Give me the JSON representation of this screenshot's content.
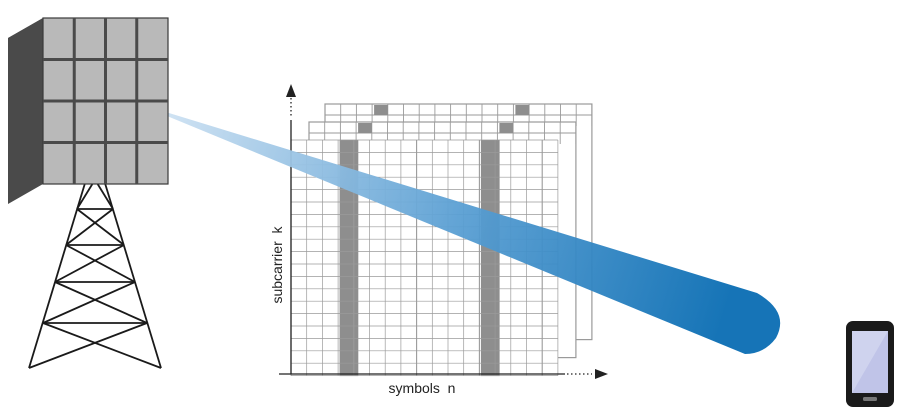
{
  "labels": {
    "y_axis": "subcarrier  k",
    "x_axis": "symbols  n"
  },
  "grid": {
    "columns": 17,
    "rows": 19,
    "pilot_columns": [
      3,
      12
    ]
  },
  "antenna_array": {
    "rows": 4,
    "cols": 4
  },
  "colors": {
    "grid_line": "#9a9a9a",
    "pilot": "#8e8e8e",
    "panel_face": "#b9b9b9",
    "panel_side": "#4a4a4a",
    "beam_start": "#dbe9f6",
    "beam_end": "#0a6db3",
    "axis": "#222222",
    "tower": "#1a1a1a",
    "device_screen": "#cfd3ee"
  },
  "icons": {
    "base_station": "antenna-array-icon",
    "tower": "lattice-tower-icon",
    "device": "tablet-icon"
  }
}
